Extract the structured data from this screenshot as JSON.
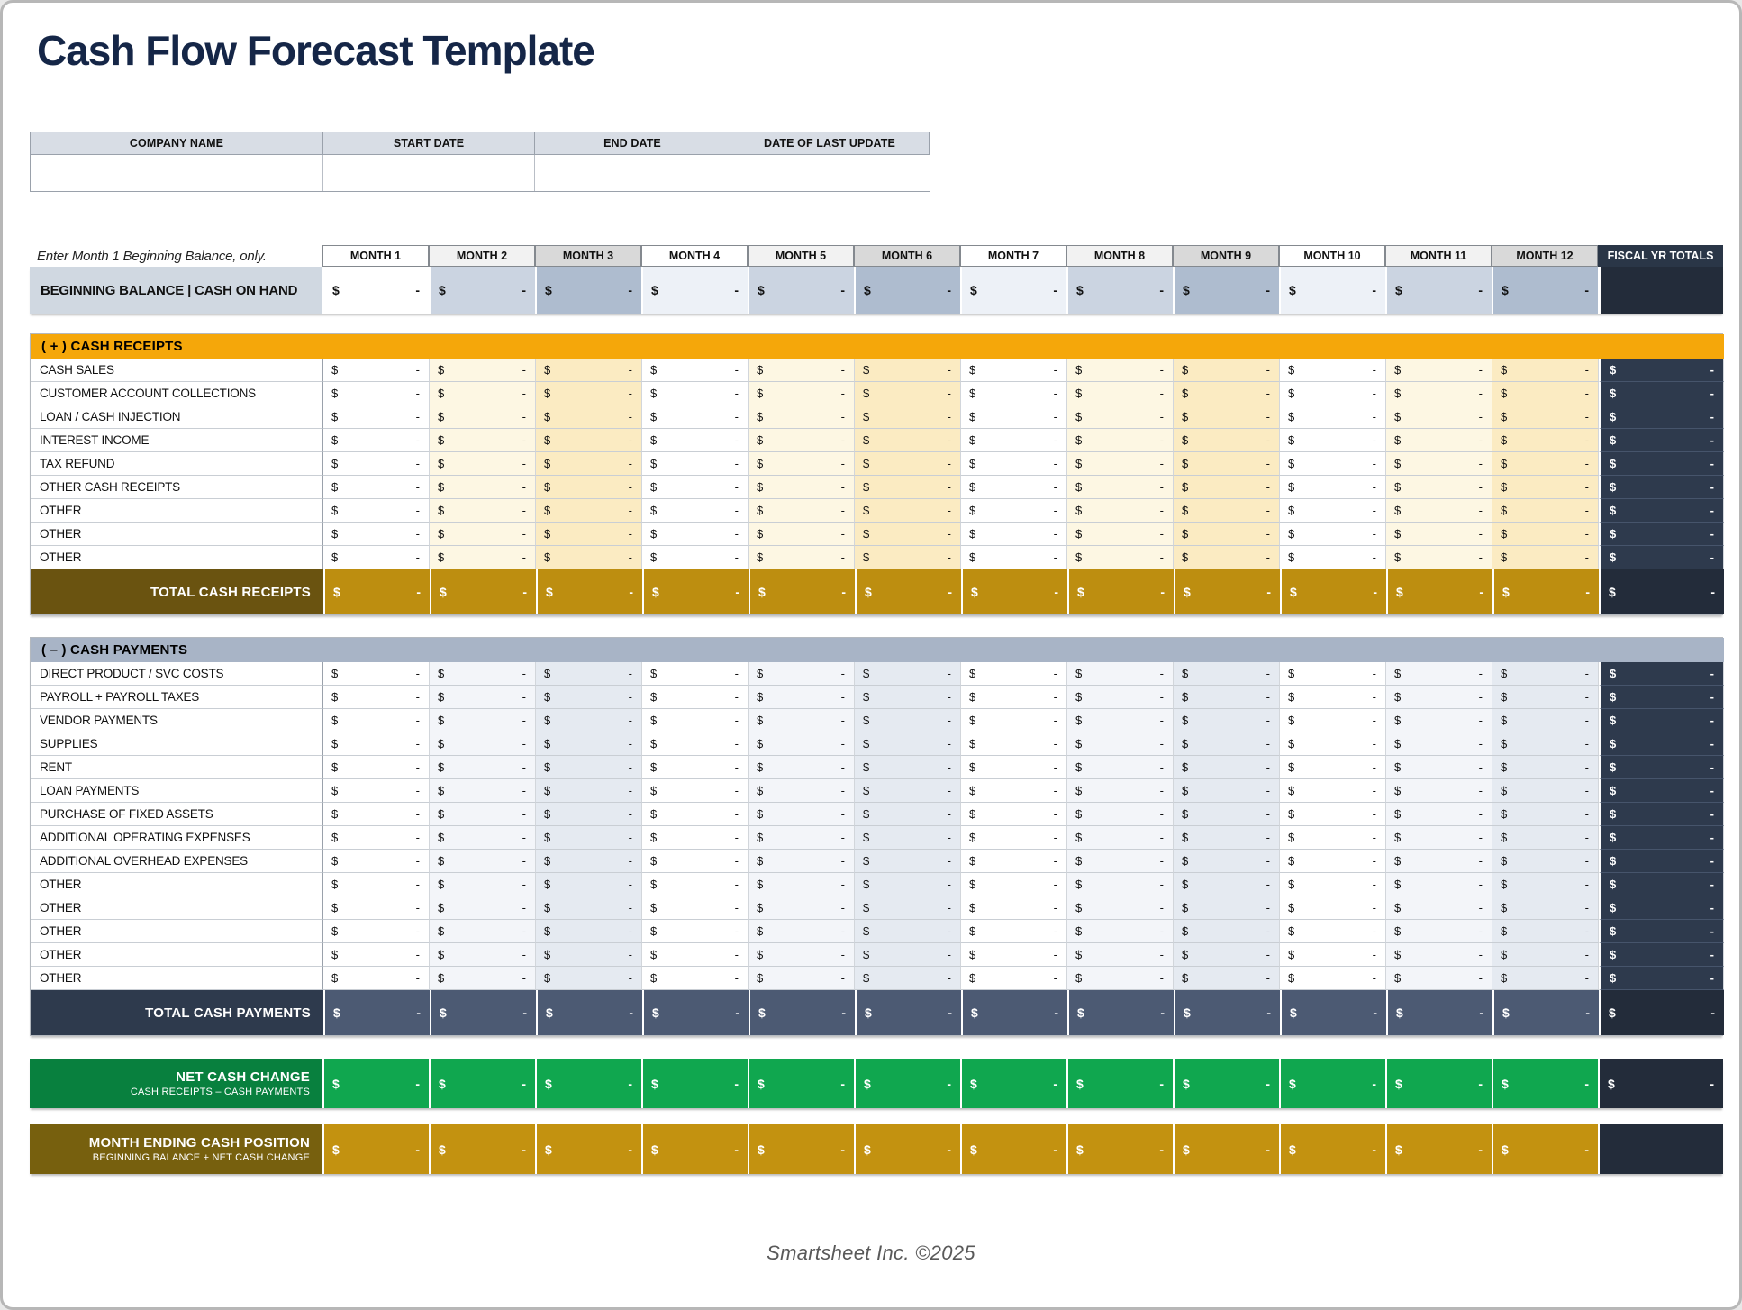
{
  "page": {
    "title": "Cash Flow Forecast Template",
    "footer": "Smartsheet Inc. ©2025"
  },
  "company_table": {
    "headers": [
      "COMPANY NAME",
      "START DATE",
      "END DATE",
      "DATE OF LAST UPDATE"
    ],
    "values": [
      "",
      "",
      "",
      ""
    ]
  },
  "sheet": {
    "note": "Enter Month 1 Beginning Balance, only.",
    "month_headers": [
      "MONTH 1",
      "MONTH 2",
      "MONTH 3",
      "MONTH 4",
      "MONTH 5",
      "MONTH 6",
      "MONTH 7",
      "MONTH 8",
      "MONTH 9",
      "MONTH 10",
      "MONTH 11",
      "MONTH 12"
    ],
    "fiscal_header": "FISCAL YR TOTALS",
    "cell": {
      "currency": "$",
      "placeholder": "-"
    },
    "beginning_balance": {
      "label": "BEGINNING BALANCE  |  CASH ON HAND"
    },
    "receipts": {
      "section_label": "( + )  CASH RECEIPTS",
      "row_labels": [
        "CASH SALES",
        "CUSTOMER ACCOUNT COLLECTIONS",
        "LOAN / CASH INJECTION",
        "INTEREST INCOME",
        "TAX REFUND",
        "OTHER CASH RECEIPTS",
        "OTHER",
        "OTHER",
        "OTHER"
      ],
      "total_label": "TOTAL CASH RECEIPTS"
    },
    "payments": {
      "section_label": "( – )  CASH PAYMENTS",
      "row_labels": [
        "DIRECT PRODUCT / SVC COSTS",
        "PAYROLL + PAYROLL TAXES",
        "VENDOR PAYMENTS",
        "SUPPLIES",
        "RENT",
        "LOAN PAYMENTS",
        "PURCHASE OF FIXED ASSETS",
        "ADDITIONAL OPERATING EXPENSES",
        "ADDITIONAL OVERHEAD EXPENSES",
        "OTHER",
        "OTHER",
        "OTHER",
        "OTHER",
        "OTHER"
      ],
      "total_label": "TOTAL CASH PAYMENTS"
    },
    "net_cash_change": {
      "label": "NET CASH CHANGE",
      "sublabel": "CASH RECEIPTS – CASH PAYMENTS"
    },
    "month_ending": {
      "label": "MONTH ENDING CASH POSITION",
      "sublabel": "BEGINNING BALANCE + NET CASH CHANGE"
    }
  },
  "colors": {
    "title_navy": "#152647",
    "header_gray": "#d8dde5",
    "receipts_gold": "#f5a70a",
    "receipts_total_label": "#6a5310",
    "receipts_total_cell": "#bd8e10",
    "payments_slate": "#a8b4c6",
    "payments_total_label": "#2e3a4d",
    "payments_total_cell": "#4c5a73",
    "net_green_label": "#08803e",
    "net_green_cell": "#10a74f",
    "ending_gold_label": "#77600e",
    "ending_gold_cell": "#c39210",
    "fiscal_column": "#2e3a4d",
    "fiscal_dark": "#232c3a"
  }
}
